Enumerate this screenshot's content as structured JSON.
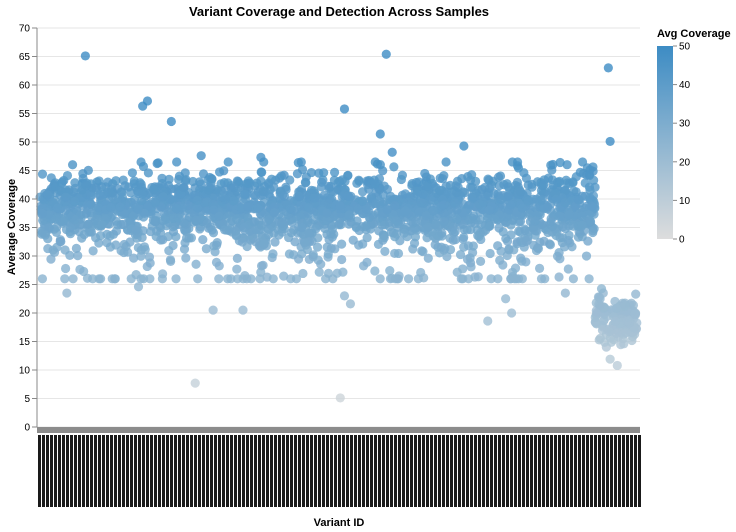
{
  "chart_data": {
    "type": "scatter",
    "title": "Variant Coverage and Detection Across Samples",
    "xlabel": "Variant ID",
    "ylabel": "Average Coverage",
    "ylim": [
      0,
      70
    ],
    "yticks": [
      0,
      5,
      10,
      15,
      20,
      25,
      30,
      35,
      40,
      45,
      50,
      55,
      60,
      65,
      70
    ],
    "grid": true,
    "x_tick_labels": "dense, overlapping, illegible variant IDs",
    "legend": {
      "title": "Avg Coverage",
      "placement": "top-right",
      "type": "gradient",
      "ticks": [
        0,
        10,
        20,
        30,
        40,
        50
      ],
      "domain": [
        0,
        50
      ],
      "color_low": "#dddddd",
      "color_high": "#3d8cc4"
    },
    "bulk": {
      "x_range_fraction": [
        0,
        0.93
      ],
      "y_mean": 38,
      "y_spread": 3.2,
      "count": 2200
    },
    "tail_cluster": {
      "x_range_fraction": [
        0.93,
        1.0
      ],
      "y_mean": 19,
      "y_spread": 2.2,
      "count": 140
    },
    "outliers": [
      {
        "x_frac": 0.076,
        "y": 65.1
      },
      {
        "x_frac": 0.58,
        "y": 65.4
      },
      {
        "x_frac": 0.952,
        "y": 63.0
      },
      {
        "x_frac": 0.18,
        "y": 57.2
      },
      {
        "x_frac": 0.172,
        "y": 56.3
      },
      {
        "x_frac": 0.22,
        "y": 53.6
      },
      {
        "x_frac": 0.51,
        "y": 55.8
      },
      {
        "x_frac": 0.57,
        "y": 51.4
      },
      {
        "x_frac": 0.955,
        "y": 50.1
      },
      {
        "x_frac": 0.71,
        "y": 49.3
      },
      {
        "x_frac": 0.27,
        "y": 47.6
      },
      {
        "x_frac": 0.37,
        "y": 47.3
      },
      {
        "x_frac": 0.59,
        "y": 48.2
      },
      {
        "x_frac": 0.8,
        "y": 46.5
      },
      {
        "x_frac": 0.26,
        "y": 7.7
      },
      {
        "x_frac": 0.503,
        "y": 5.1
      },
      {
        "x_frac": 0.045,
        "y": 23.5
      },
      {
        "x_frac": 0.165,
        "y": 24.6
      },
      {
        "x_frac": 0.29,
        "y": 20.5
      },
      {
        "x_frac": 0.34,
        "y": 20.5
      },
      {
        "x_frac": 0.52,
        "y": 21.6
      },
      {
        "x_frac": 0.51,
        "y": 23.0
      },
      {
        "x_frac": 0.75,
        "y": 18.6
      },
      {
        "x_frac": 0.79,
        "y": 20.0
      },
      {
        "x_frac": 0.78,
        "y": 22.5
      },
      {
        "x_frac": 0.88,
        "y": 23.5
      },
      {
        "x_frac": 0.955,
        "y": 11.9
      },
      {
        "x_frac": 0.967,
        "y": 10.8
      }
    ]
  }
}
